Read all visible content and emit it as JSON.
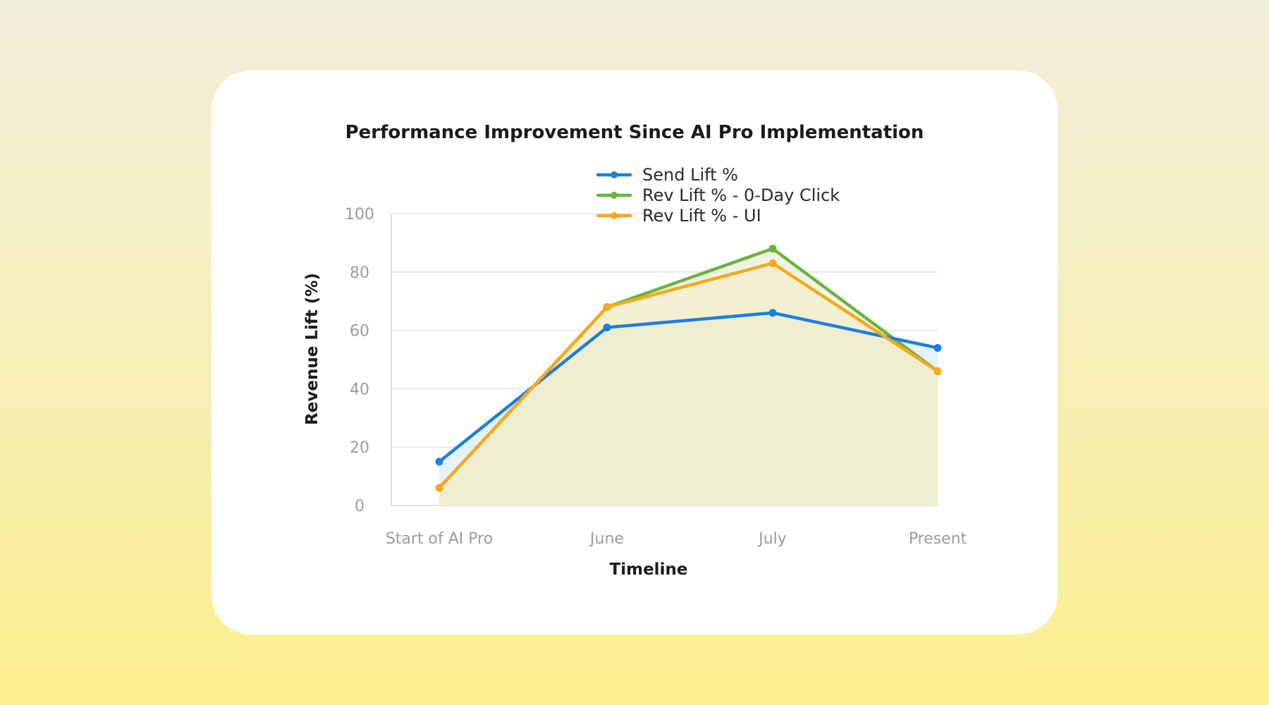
{
  "chart_data": {
    "type": "line",
    "title": "Performance Improvement Since AI Pro Implementation",
    "xlabel": "Timeline",
    "ylabel": "Revenue Lift (%)",
    "categories": [
      "Start of AI Pro",
      "June",
      "July",
      "Present"
    ],
    "ylim": [
      0,
      100
    ],
    "yticks": [
      0,
      20,
      40,
      60,
      80,
      100
    ],
    "grid": true,
    "legend_position": "top-right",
    "series": [
      {
        "name": "Send Lift %",
        "color": "#1a7fe0",
        "values": [
          15,
          61,
          66,
          54
        ]
      },
      {
        "name": "Rev Lift % - 0-Day Click",
        "color": "#6cb33e",
        "values": [
          6,
          68,
          88,
          46
        ]
      },
      {
        "name": "Rev Lift % - UI",
        "color": "#f7a81b",
        "values": [
          6,
          68,
          83,
          46
        ]
      }
    ]
  }
}
